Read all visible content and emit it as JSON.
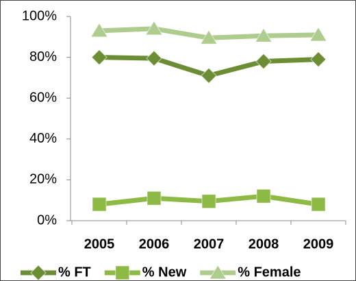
{
  "chart_data": {
    "type": "line",
    "categories": [
      "2005",
      "2006",
      "2007",
      "2008",
      "2009"
    ],
    "series": [
      {
        "name": "% FT",
        "color": "#6b8e35",
        "marker": "diamond",
        "values": [
          80,
          79.5,
          71,
          78,
          79
        ]
      },
      {
        "name": "% New",
        "color": "#8dba45",
        "marker": "square",
        "values": [
          8,
          11,
          9.5,
          12,
          8
        ]
      },
      {
        "name": "% Female",
        "color": "#afcc8f",
        "marker": "triangle",
        "values": [
          93,
          94,
          89.5,
          90.5,
          91
        ]
      }
    ],
    "ylim": [
      0,
      100
    ],
    "yticks": [
      {
        "value": 0,
        "label": "0%"
      },
      {
        "value": 20,
        "label": "20%"
      },
      {
        "value": 40,
        "label": "40%"
      },
      {
        "value": 60,
        "label": "60%"
      },
      {
        "value": 80,
        "label": "80%"
      },
      {
        "value": 100,
        "label": "100%"
      }
    ],
    "grid": false,
    "legend": "bottom"
  }
}
